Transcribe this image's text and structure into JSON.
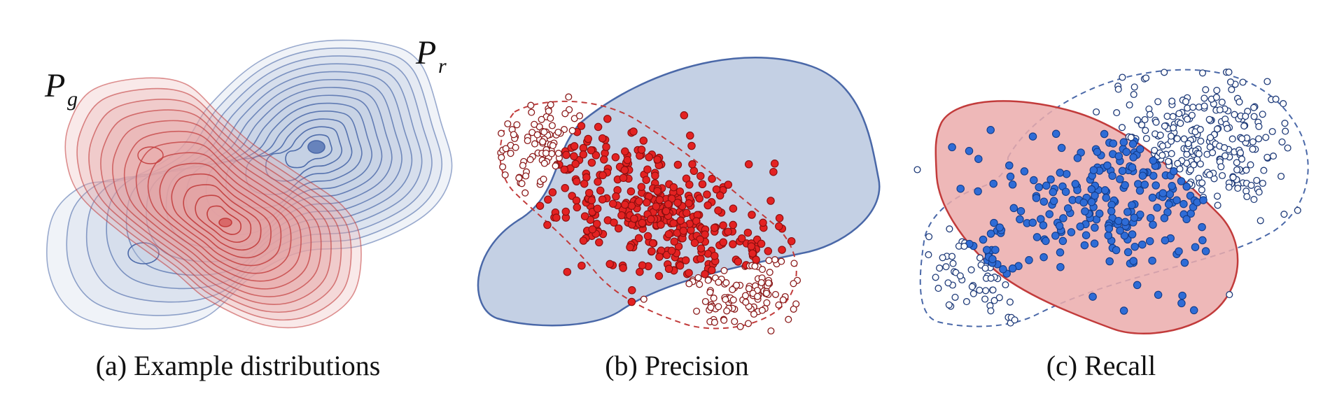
{
  "panels": [
    {
      "id": "a",
      "caption": "(a) Example distributions",
      "labels": {
        "pg": {
          "main": "P",
          "sub": "g"
        },
        "pr": {
          "main": "P",
          "sub": "r"
        }
      }
    },
    {
      "id": "b",
      "caption": "(b) Precision"
    },
    {
      "id": "c",
      "caption": "(c) Recall"
    }
  ],
  "colors": {
    "red_stroke": "#c23b3b",
    "red_fill": "#e8a3a3",
    "blue_stroke": "#4a68a8",
    "blue_fill": "#c4d0e4",
    "red_point": "#e32222",
    "blue_point": "#2f6cd6",
    "hollow_red": "#8b1a1a",
    "hollow_blue": "#1e3a78"
  },
  "legend": [],
  "icons": [
    "contour-plot",
    "scatter-points"
  ]
}
